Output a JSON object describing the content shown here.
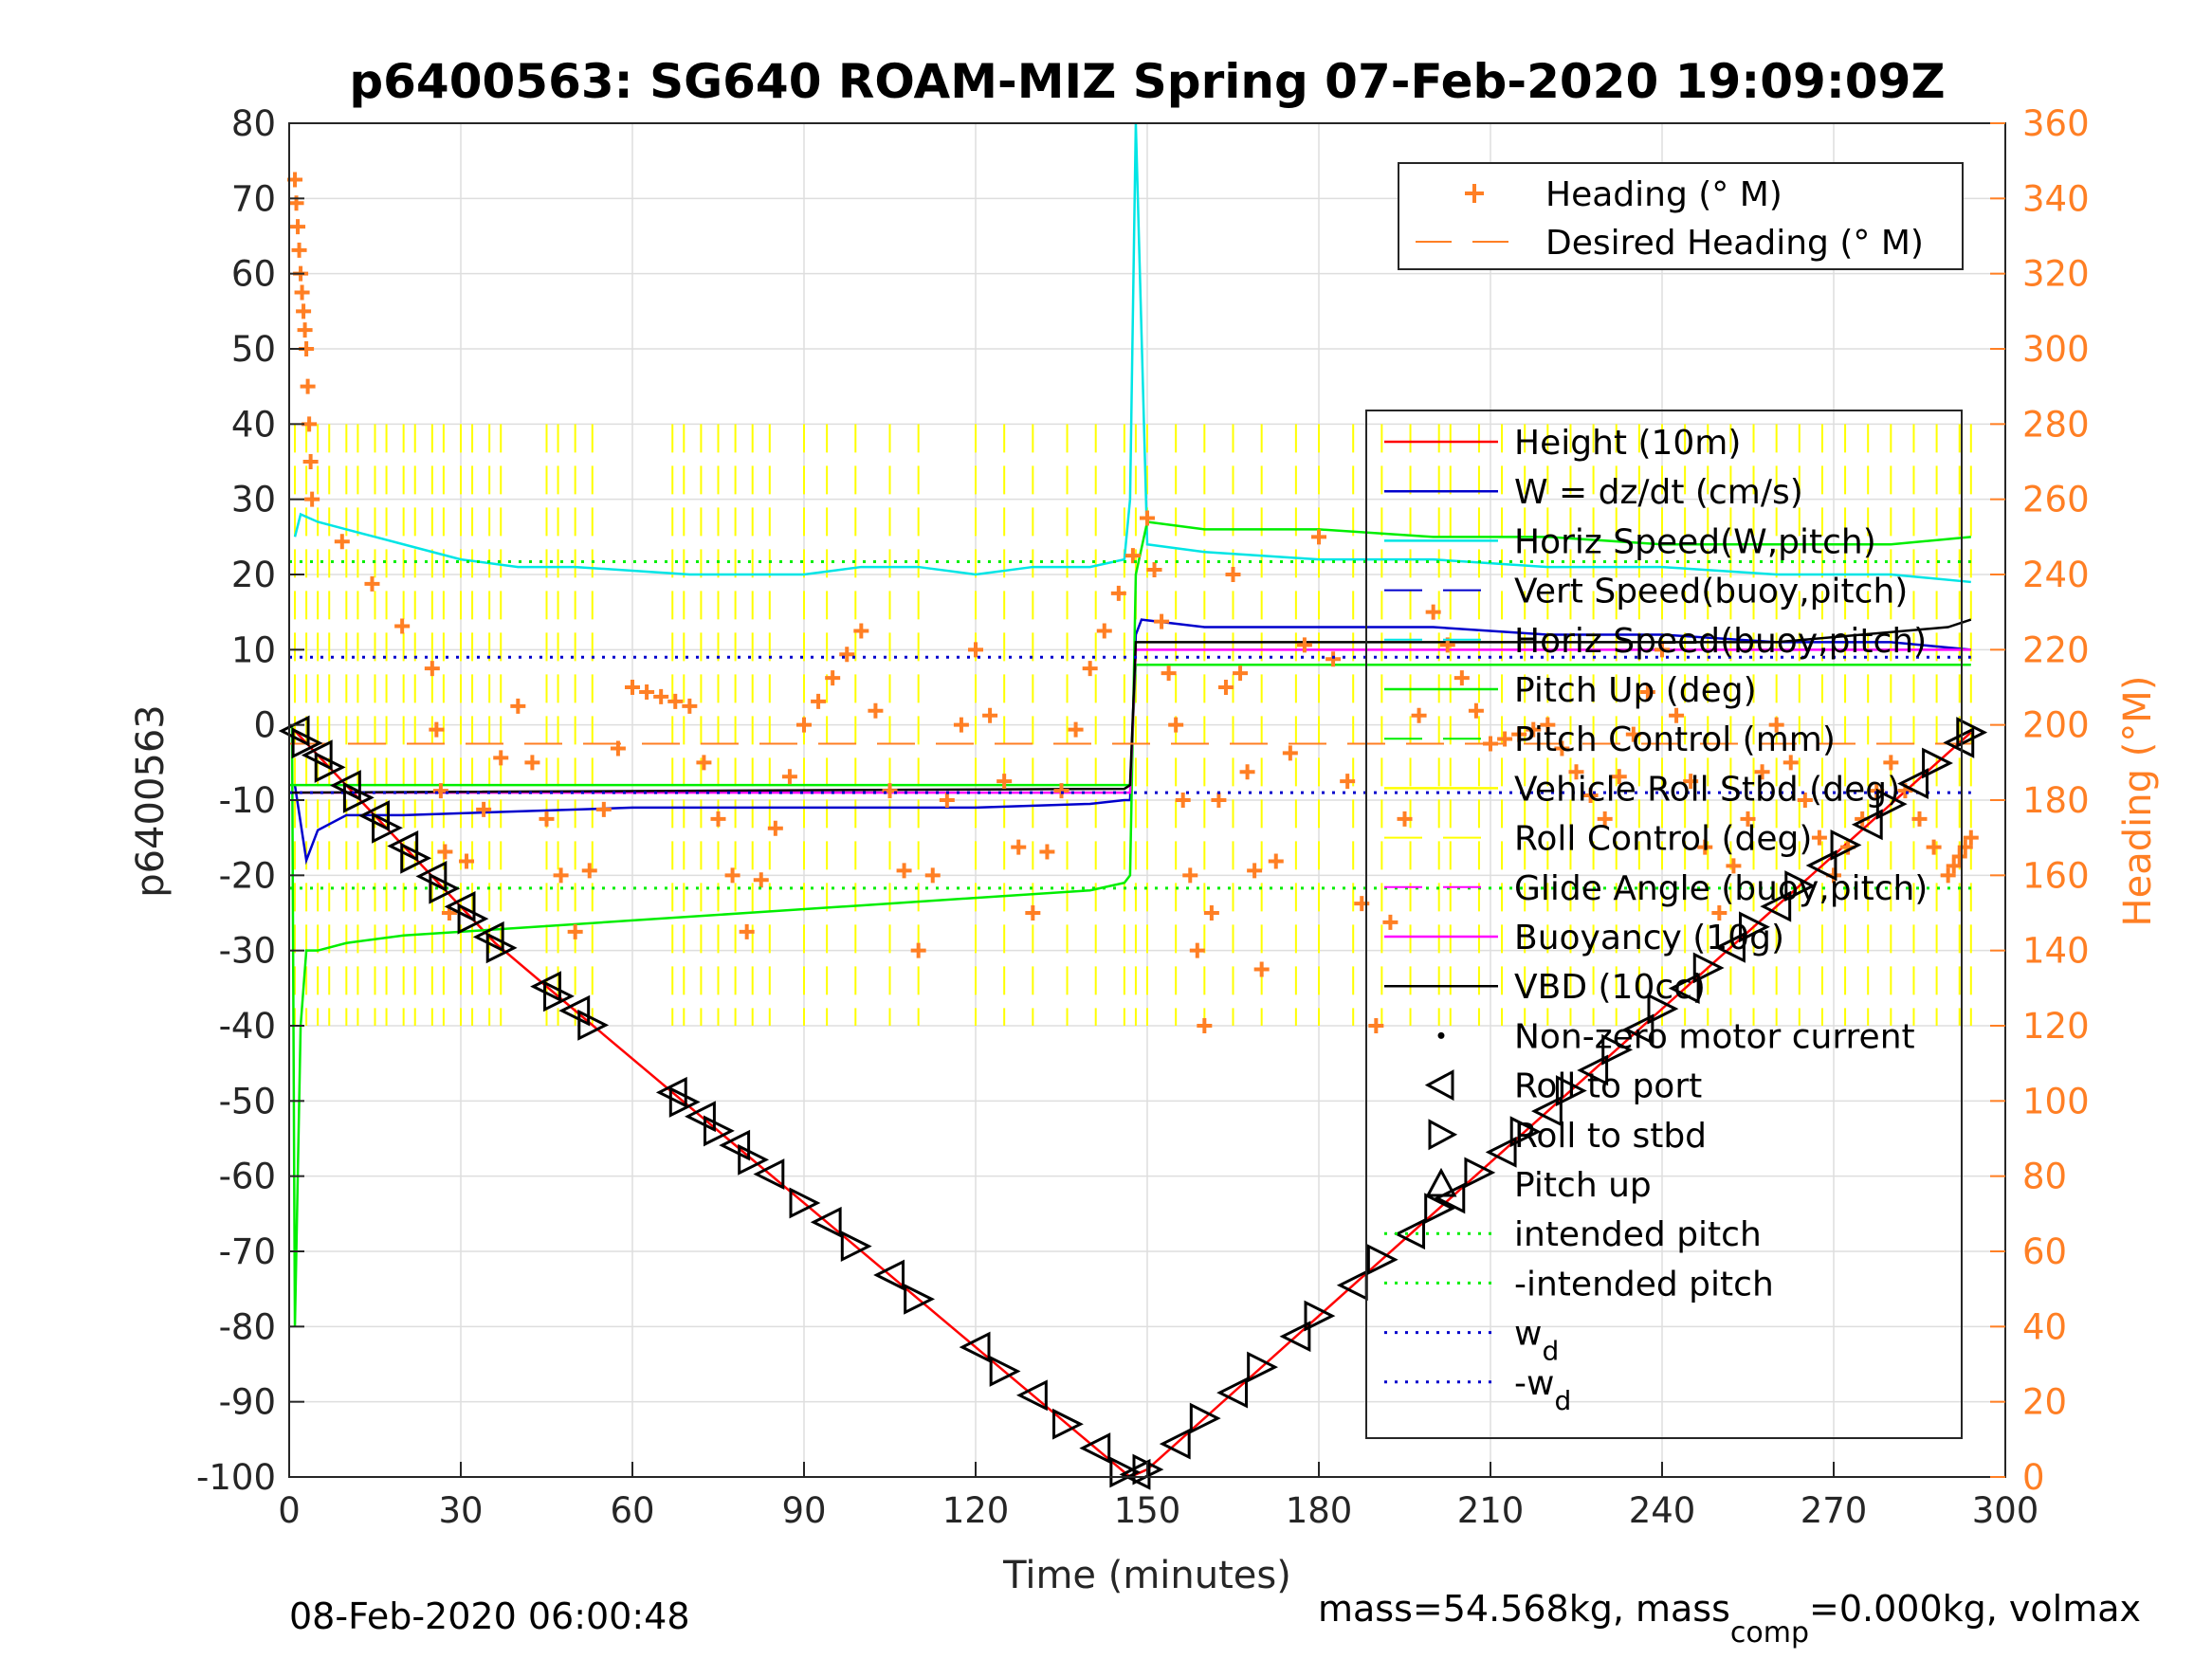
{
  "chart_data": {
    "type": "line",
    "title": "p6400563: SG640 ROAM-MIZ Spring 07-Feb-2020 19:09:09Z",
    "xlabel": "Time (minutes)",
    "ylabel": "p6400563",
    "y2label": "Heading (°M)",
    "xlim": [
      0,
      300
    ],
    "ylim": [
      -100,
      80
    ],
    "y2lim": [
      0,
      360
    ],
    "xticks": [
      0,
      30,
      60,
      90,
      120,
      150,
      180,
      210,
      240,
      270,
      300
    ],
    "yticks": [
      80,
      70,
      60,
      50,
      40,
      30,
      20,
      10,
      0,
      -10,
      -20,
      -30,
      -40,
      -50,
      -60,
      -70,
      -80,
      -90,
      -100
    ],
    "y2ticks": [
      360,
      340,
      320,
      300,
      280,
      260,
      240,
      220,
      200,
      180,
      160,
      140,
      120,
      100,
      80,
      60,
      40,
      20,
      0
    ],
    "grid": true,
    "legend1_placement": "top-right",
    "legend1": [
      {
        "label": "Heading (° M)",
        "color": "#ff7f24",
        "style": "plus"
      },
      {
        "label": "Desired Heading (° M)",
        "color": "#ff7f24",
        "style": "dash"
      }
    ],
    "legend2_placement": "right",
    "legend2": [
      {
        "label": "Height (10m)",
        "color": "#ff0000",
        "style": "solid"
      },
      {
        "label": "W = dz/dt (cm/s)",
        "color": "#0000cc",
        "style": "solid"
      },
      {
        "label": "Horiz Speed(W,pitch)",
        "color": "#00e5e5",
        "style": "solid"
      },
      {
        "label": "Vert Speed(buoy,pitch)",
        "color": "#0000cc",
        "style": "dash"
      },
      {
        "label": "Horiz Speed(buoy,pitch)",
        "color": "#00e5e5",
        "style": "dash"
      },
      {
        "label": "Pitch Up (deg)",
        "color": "#00ee00",
        "style": "solid"
      },
      {
        "label": "Pitch Control (mm)",
        "color": "#00ee00",
        "style": "dash"
      },
      {
        "label": "Vehicle Roll Stbd (deg)",
        "color": "#ffff00",
        "style": "solid"
      },
      {
        "label": "Roll Control (deg)",
        "color": "#ffff00",
        "style": "dash"
      },
      {
        "label": "Glide Angle (buoy,pitch)",
        "color": "#ff00ff",
        "style": "dash"
      },
      {
        "label": "Buoyancy (10g)",
        "color": "#ff00ff",
        "style": "solid"
      },
      {
        "label": "VBD (10cc)",
        "color": "#000000",
        "style": "solid"
      },
      {
        "label": "Non-zero motor current",
        "color": "#000000",
        "style": "dot"
      },
      {
        "label": "Roll to port",
        "color": "#000000",
        "style": "tri-left"
      },
      {
        "label": "Roll to stbd",
        "color": "#000000",
        "style": "tri-right"
      },
      {
        "label": "Pitch up",
        "color": "#000000",
        "style": "tri-up"
      },
      {
        "label": "intended pitch",
        "color": "#00ee00",
        "style": "dot"
      },
      {
        "label": "-intended pitch",
        "color": "#00ee00",
        "style": "dot"
      },
      {
        "label": "w",
        "sub": "d",
        "color": "#0000cc",
        "style": "dot"
      },
      {
        "label": "-w",
        "sub": "d",
        "color": "#0000cc",
        "style": "dot"
      }
    ],
    "series": [
      {
        "name": "Height (10m)",
        "color": "#ff0000",
        "x": [
          0,
          36,
          50,
          147,
          150,
          294
        ],
        "y": [
          0,
          -29,
          -38,
          -100,
          -99,
          -1
        ]
      },
      {
        "name": "Horiz Speed(W,pitch)",
        "color": "#00e5e5",
        "x": [
          1,
          2,
          5,
          10,
          15,
          20,
          30,
          40,
          50,
          70,
          90,
          100,
          110,
          120,
          130,
          140,
          146,
          147,
          148,
          150,
          160,
          180,
          200,
          220,
          240,
          260,
          280,
          294
        ],
        "y": [
          25,
          28,
          27,
          26,
          25,
          24,
          22,
          21,
          21,
          20,
          20,
          21,
          21,
          20,
          21,
          21,
          22,
          30,
          80,
          24,
          23,
          22,
          22,
          21,
          21,
          20,
          20,
          19
        ]
      },
      {
        "name": "W = dz/dt (cm/s)",
        "color": "#0000cc",
        "x": [
          1,
          3,
          5,
          10,
          20,
          40,
          60,
          90,
          120,
          140,
          146,
          147,
          148,
          149,
          160,
          180,
          200,
          220,
          240,
          260,
          280,
          294
        ],
        "y": [
          -8,
          -18,
          -14,
          -12,
          -12,
          -11.5,
          -11,
          -11,
          -11,
          -10.5,
          -10,
          -10,
          12,
          14,
          13,
          13,
          13,
          12,
          12,
          11,
          11,
          10
        ]
      },
      {
        "name": "Pitch Up (deg)",
        "color": "#00ee00",
        "x": [
          0.5,
          1,
          2,
          3,
          5,
          10,
          20,
          40,
          60,
          80,
          100,
          120,
          140,
          146,
          147,
          148,
          150,
          160,
          180,
          200,
          220,
          240,
          260,
          280,
          294
        ],
        "y": [
          0,
          -80,
          -40,
          -30,
          -30,
          -29,
          -28,
          -27,
          -26,
          -25,
          -24,
          -23,
          -22,
          -21,
          -20,
          20,
          27,
          26,
          26,
          25,
          25,
          24,
          24,
          24,
          25
        ]
      },
      {
        "name": "Pitch Control (mm)",
        "color": "#00ee00",
        "x": [
          0,
          146,
          147,
          148,
          294
        ],
        "y": [
          -8,
          -8,
          -8,
          8,
          8
        ]
      },
      {
        "name": "Buoyancy (10g)",
        "color": "#ff00ff",
        "x": [
          0,
          146,
          147,
          148,
          294
        ],
        "y": [
          -9,
          -9,
          -9,
          10,
          10
        ]
      },
      {
        "name": "VBD (10cc)",
        "color": "#000000",
        "x": [
          0,
          146,
          147,
          148,
          200,
          260,
          290,
          294
        ],
        "y": [
          -9,
          -8.5,
          -8,
          11,
          11,
          11,
          13,
          14
        ]
      },
      {
        "name": "Heading (° M)",
        "color": "#ff7f24",
        "style": "plus",
        "x": [
          1,
          2,
          3,
          4,
          25,
          28,
          40,
          50,
          60,
          70,
          80,
          90,
          100,
          110,
          120,
          130,
          140,
          150,
          155,
          160,
          165,
          170,
          180,
          190,
          200,
          210,
          220,
          230,
          240,
          250,
          260,
          270,
          280,
          290,
          294
        ],
        "y": [
          345,
          320,
          300,
          260,
          215,
          150,
          205,
          145,
          210,
          205,
          145,
          200,
          225,
          140,
          220,
          150,
          215,
          255,
          200,
          120,
          240,
          135,
          250,
          120,
          230,
          195,
          200,
          175,
          220,
          150,
          200,
          160,
          190,
          160,
          170
        ]
      },
      {
        "name": "Desired Heading (° M)",
        "color": "#ff7f24",
        "style": "dash",
        "x": [
          0,
          294
        ],
        "y": [
          195,
          195
        ]
      },
      {
        "name": "intended pitch",
        "color": "#00ee00",
        "style": "dot",
        "x": [
          0,
          294
        ],
        "y": [
          21.7,
          21.7
        ]
      },
      {
        "name": "-intended pitch",
        "color": "#00ee00",
        "style": "dot",
        "x": [
          0,
          294
        ],
        "y": [
          -21.7,
          -21.7
        ]
      },
      {
        "name": "w_d",
        "color": "#0000cc",
        "style": "dot",
        "x": [
          0,
          294
        ],
        "y": [
          9,
          9
        ]
      },
      {
        "name": "-w_d",
        "color": "#0000cc",
        "style": "dot",
        "x": [
          0,
          294
        ],
        "y": [
          -9,
          -9
        ]
      }
    ],
    "roll_commands_minutes": [
      1,
      3,
      5,
      7,
      10,
      12,
      15,
      17,
      20,
      22,
      25,
      27,
      30,
      32,
      35,
      37,
      45,
      47,
      50,
      53,
      67,
      69,
      72,
      75,
      78,
      81,
      84,
      90,
      94,
      99,
      105,
      110,
      120,
      125,
      130,
      136,
      141,
      146,
      148,
      150,
      155,
      160,
      165,
      170,
      176,
      180,
      186,
      191,
      196,
      201,
      203,
      208,
      212,
      216,
      220,
      224,
      228,
      232,
      236,
      240,
      244,
      248,
      252,
      256,
      260,
      264,
      268,
      272,
      276,
      280,
      284,
      288,
      292,
      294
    ],
    "footer_left": "08-Feb-2020 06:00:48",
    "footer_right_main": "mass=54.568kg, mass",
    "footer_right_sub": "comp",
    "footer_right_tail": "=0.000kg, volmax"
  }
}
